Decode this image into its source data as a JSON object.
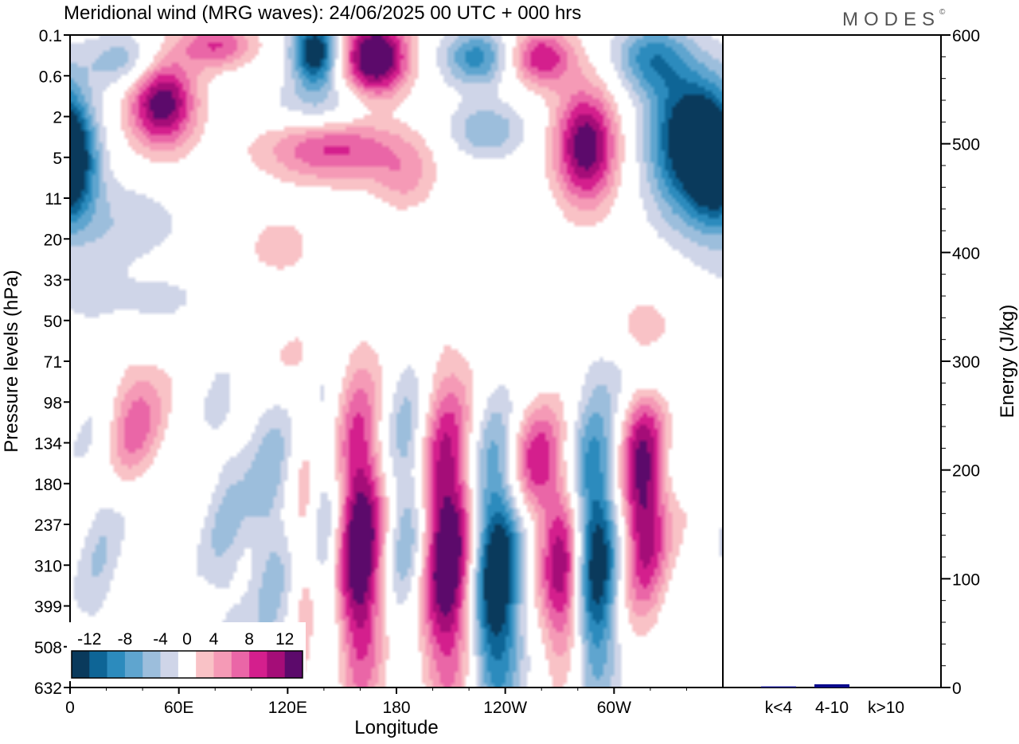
{
  "title": "Meridional wind (MRG waves):  24/06/2025  00 UTC  + 000 hrs",
  "logo_text": "MODES",
  "logo_mark": "©",
  "chart_data": [
    {
      "type": "heatmap",
      "title": "Meridional wind (MRG waves):  24/06/2025  00 UTC  + 000 hrs",
      "xlabel": "Longitude",
      "ylabel": "Pressure levels (hPa)",
      "x_ticks": [
        "0",
        "60E",
        "120E",
        "180",
        "120W",
        "60W"
      ],
      "x_tick_degrees": [
        0,
        60,
        120,
        180,
        240,
        300
      ],
      "x_range_degrees": [
        0,
        360
      ],
      "y_ticks": [
        "0.1",
        "0.6",
        "2",
        "5",
        "11",
        "20",
        "33",
        "50",
        "71",
        "98",
        "134",
        "180",
        "237",
        "310",
        "399",
        "508",
        "632"
      ],
      "colorbar": {
        "tick_labels": [
          "-12",
          "-8",
          "-4",
          "0",
          "4",
          "8",
          "12"
        ],
        "tick_values": [
          -12,
          -8,
          -4,
          0,
          4,
          8,
          12
        ],
        "bin_edges": [
          -14,
          -12,
          -10,
          -8,
          -6,
          -4,
          -2,
          2,
          4,
          6,
          8,
          10,
          12,
          14
        ],
        "colors": [
          "#0a3a5c",
          "#0e6596",
          "#2c8bbd",
          "#5fa5cf",
          "#9cbedc",
          "#cfd5e8",
          "#ffffff",
          "#f9c2c6",
          "#f59ab6",
          "#ea66a7",
          "#d41f8d",
          "#a50d78",
          "#5c0a6b"
        ]
      },
      "anomalies": [
        {
          "lon": 160,
          "lev": 12.5,
          "amp": 15,
          "sl": 9,
          "sp": 2.6
        },
        {
          "lon": 208,
          "lev": 12.5,
          "amp": 16,
          "sl": 11,
          "sp": 2.6
        },
        {
          "lon": 235,
          "lev": 13.3,
          "amp": -16,
          "sl": 10,
          "sp": 2.4
        },
        {
          "lon": 290,
          "lev": 12.8,
          "amp": -15,
          "sl": 9,
          "sp": 2.4
        },
        {
          "lon": 317,
          "lev": 11.3,
          "amp": 14,
          "sl": 9,
          "sp": 1.9
        },
        {
          "lon": 273,
          "lev": 13.4,
          "amp": 12,
          "sl": 9,
          "sp": 1.5
        },
        {
          "lon": 258,
          "lev": 10.6,
          "amp": 9,
          "sl": 11,
          "sp": 1.1
        },
        {
          "lon": 187,
          "lev": 11.5,
          "amp": -7,
          "sl": 9,
          "sp": 2.4
        },
        {
          "lon": 110,
          "lev": 12,
          "amp": -5,
          "sl": 9,
          "sp": 2.8
        },
        {
          "lon": 140,
          "lev": 12.5,
          "amp": -4,
          "sl": 6,
          "sp": 3.2
        },
        {
          "lon": 130,
          "lev": 13.5,
          "amp": 3.5,
          "sl": 6,
          "sp": 3
        },
        {
          "lon": 85,
          "lev": 12,
          "amp": -3.5,
          "sl": 9,
          "sp": 3
        },
        {
          "lon": 35,
          "lev": 9.5,
          "amp": 6.5,
          "sl": 12,
          "sp": 1.1
        },
        {
          "lon": 15,
          "lev": 12.5,
          "amp": -3,
          "sl": 9,
          "sp": 3
        },
        {
          "lon": 320,
          "lev": 8.3,
          "amp": -4,
          "sl": 18,
          "sp": 0.6
        },
        {
          "lon": 325,
          "lev": 7.3,
          "amp": 3,
          "sl": 15,
          "sp": 0.7
        },
        {
          "lon": 110,
          "lev": 7.8,
          "amp": 3,
          "sl": 14,
          "sp": 0.7
        },
        {
          "lon": 135,
          "lev": 0.35,
          "amp": -15,
          "sl": 9,
          "sp": 0.6
        },
        {
          "lon": 168,
          "lev": 0.5,
          "amp": 16,
          "sl": 13,
          "sp": 0.7
        },
        {
          "lon": 225,
          "lev": 0.5,
          "amp": -9,
          "sl": 14,
          "sp": 0.5
        },
        {
          "lon": 260,
          "lev": 0.5,
          "amp": 10,
          "sl": 13,
          "sp": 0.5
        },
        {
          "lon": 320,
          "lev": 0.5,
          "amp": -8,
          "sl": 14,
          "sp": 0.6
        },
        {
          "lon": 80,
          "lev": 0.2,
          "amp": 8,
          "sl": 15,
          "sp": 0.4
        },
        {
          "lon": 30,
          "lev": 0.6,
          "amp": -6,
          "sl": 16,
          "sp": 0.5
        },
        {
          "lon": 50,
          "lev": 1.6,
          "amp": 14,
          "sl": 13,
          "sp": 0.8
        },
        {
          "lon": 285,
          "lev": 2.7,
          "amp": 14,
          "sl": 12,
          "sp": 1
        },
        {
          "lon": 340,
          "lev": 2.5,
          "amp": -14,
          "sl": 15,
          "sp": 1.3
        },
        {
          "lon": 355,
          "lev": 3,
          "amp": -9,
          "sl": 10,
          "sp": 1
        },
        {
          "lon": 2,
          "lev": 3,
          "amp": -7,
          "sl": 10,
          "sp": 1
        },
        {
          "lon": 140,
          "lev": 1.8,
          "amp": -5,
          "sl": 25,
          "sp": 0.5
        },
        {
          "lon": 145,
          "lev": 2.7,
          "amp": 9,
          "sl": 28,
          "sp": 0.6
        },
        {
          "lon": 230,
          "lev": 2.3,
          "amp": -6,
          "sl": 15,
          "sp": 0.5
        },
        {
          "lon": 185,
          "lev": 3.5,
          "amp": 4,
          "sl": 12,
          "sp": 0.6
        },
        {
          "lon": 115,
          "lev": 5.2,
          "amp": 4,
          "sl": 12,
          "sp": 0.5
        },
        {
          "lon": 25,
          "lev": 4.6,
          "amp": -3.5,
          "sl": 30,
          "sp": 0.8
        },
        {
          "lon": 30,
          "lev": 6.5,
          "amp": -2.6,
          "sl": 35,
          "sp": 0.5
        }
      ]
    },
    {
      "type": "bar",
      "ylabel": "Energy (J/kg)",
      "categories": [
        "k<4",
        "4-10",
        "k>10"
      ],
      "values": [
        1,
        3,
        0
      ],
      "ylim": [
        0,
        600
      ],
      "y_ticks": [
        0,
        100,
        200,
        300,
        400,
        500,
        600
      ],
      "bar_color": "#0a0a8c"
    }
  ]
}
